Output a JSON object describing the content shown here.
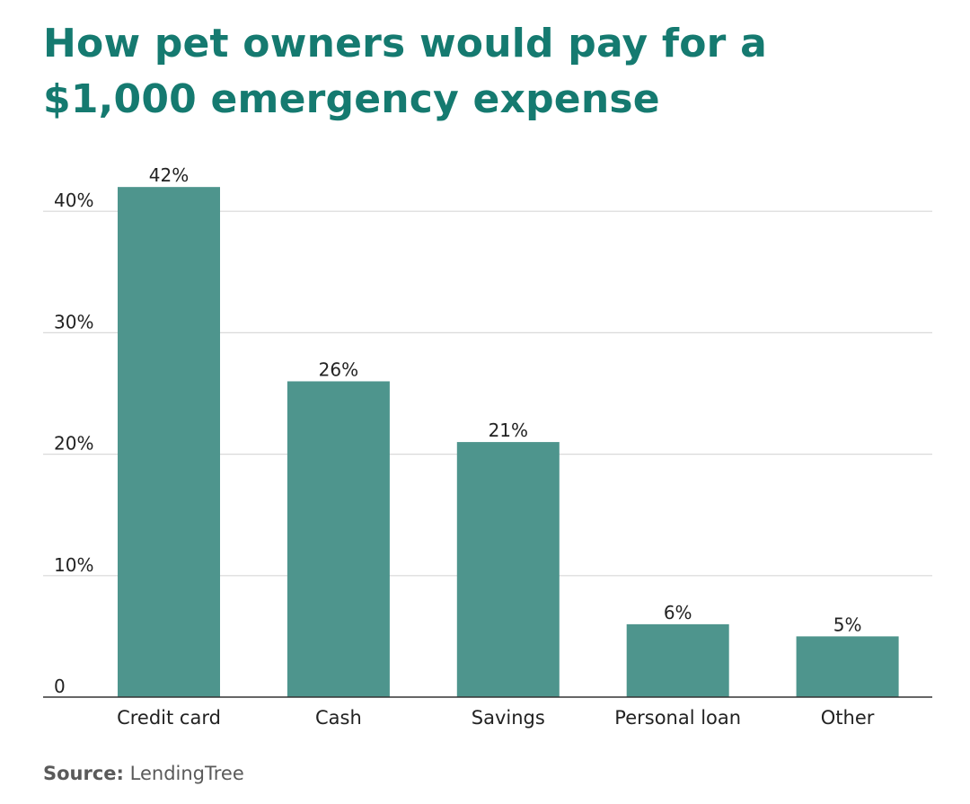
{
  "title": {
    "line1": "How pet owners would pay for a",
    "line2": "$1,000 emergency expense"
  },
  "chart_data": {
    "type": "bar",
    "title": "How pet owners would pay for a $1,000 emergency expense",
    "categories": [
      "Credit card",
      "Cash",
      "Savings",
      "Personal loan",
      "Other"
    ],
    "values": [
      42,
      26,
      21,
      6,
      5
    ],
    "data_labels": [
      "42%",
      "26%",
      "21%",
      "6%",
      "5%"
    ],
    "yticks": [
      0,
      10,
      20,
      30,
      40
    ],
    "ytick_labels": [
      "0",
      "10%",
      "20%",
      "30%",
      "40%"
    ],
    "ylim": [
      0,
      42
    ],
    "xlabel": "",
    "ylabel": "",
    "grid": true,
    "legend": "none",
    "bar_color": "#4e958d",
    "grid_color": "#d9d9d9",
    "axis_color": "#333333"
  },
  "source": {
    "label": "Source:",
    "text": "LendingTree"
  },
  "colors": {
    "title": "#157a70",
    "text": "#222222",
    "source": "#5a5a5a"
  }
}
